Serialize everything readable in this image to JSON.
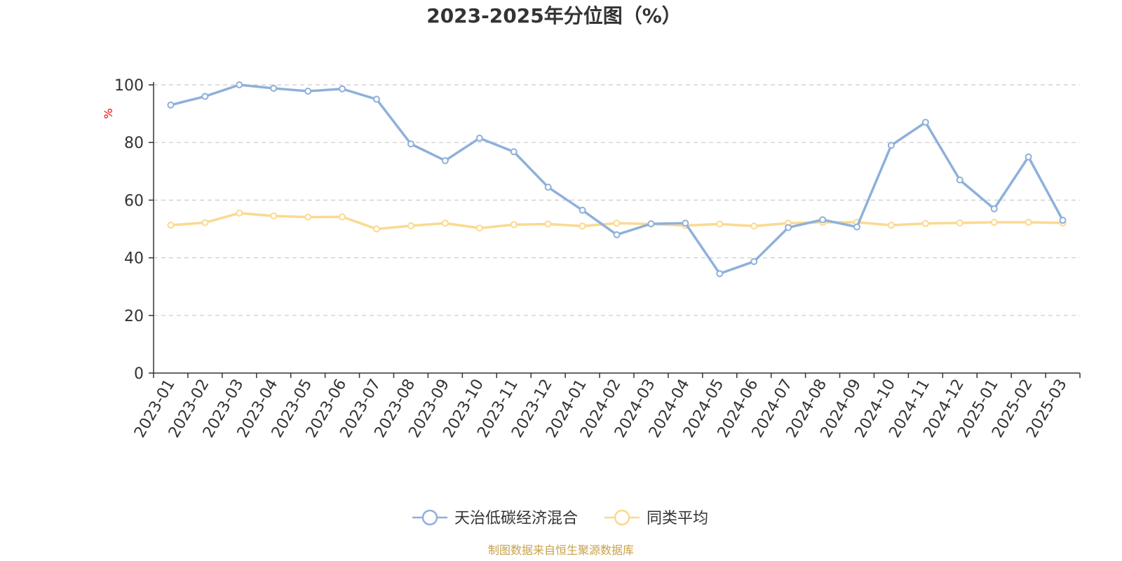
{
  "chart_data": {
    "type": "line",
    "title": "2023-2025年分位图（%）",
    "ylabel": "%",
    "ylim": [
      0,
      100
    ],
    "yticks": [
      0,
      20,
      40,
      60,
      80,
      100
    ],
    "grid": true,
    "legend_position": "bottom",
    "x": [
      "2023-01",
      "2023-02",
      "2023-03",
      "2023-04",
      "2023-05",
      "2023-06",
      "2023-07",
      "2023-08",
      "2023-09",
      "2023-10",
      "2023-11",
      "2023-12",
      "2024-01",
      "2024-02",
      "2024-03",
      "2024-04",
      "2024-05",
      "2024-06",
      "2024-07",
      "2024-08",
      "2024-09",
      "2024-10",
      "2024-11",
      "2024-12",
      "2025-01",
      "2025-02",
      "2025-03"
    ],
    "series": [
      {
        "name": "天治低碳经济混合",
        "color": "#8eb0db",
        "values": [
          93,
          96,
          100,
          98.8,
          97.8,
          98.6,
          95,
          79.5,
          73.7,
          81.5,
          76.8,
          64.5,
          56.5,
          48,
          51.8,
          52,
          34.5,
          38.7,
          50.5,
          53.2,
          50.7,
          79,
          87,
          67,
          57,
          75,
          53
        ]
      },
      {
        "name": "同类平均",
        "color": "#fbd98f",
        "values": [
          51.3,
          52.2,
          55.5,
          54.5,
          54.1,
          54.2,
          50,
          51.1,
          52,
          50.3,
          51.5,
          51.7,
          51,
          52,
          51.7,
          51.2,
          51.7,
          51,
          52,
          52.3,
          52.3,
          51.3,
          51.9,
          52.1,
          52.3,
          52.3,
          52.1
        ]
      }
    ],
    "source": "制图数据来自恒生聚源数据库",
    "colors": {
      "axis": "#333333",
      "grid": "#cccccc",
      "unit_label": "#ff0000",
      "source": "#c8a14a"
    }
  }
}
